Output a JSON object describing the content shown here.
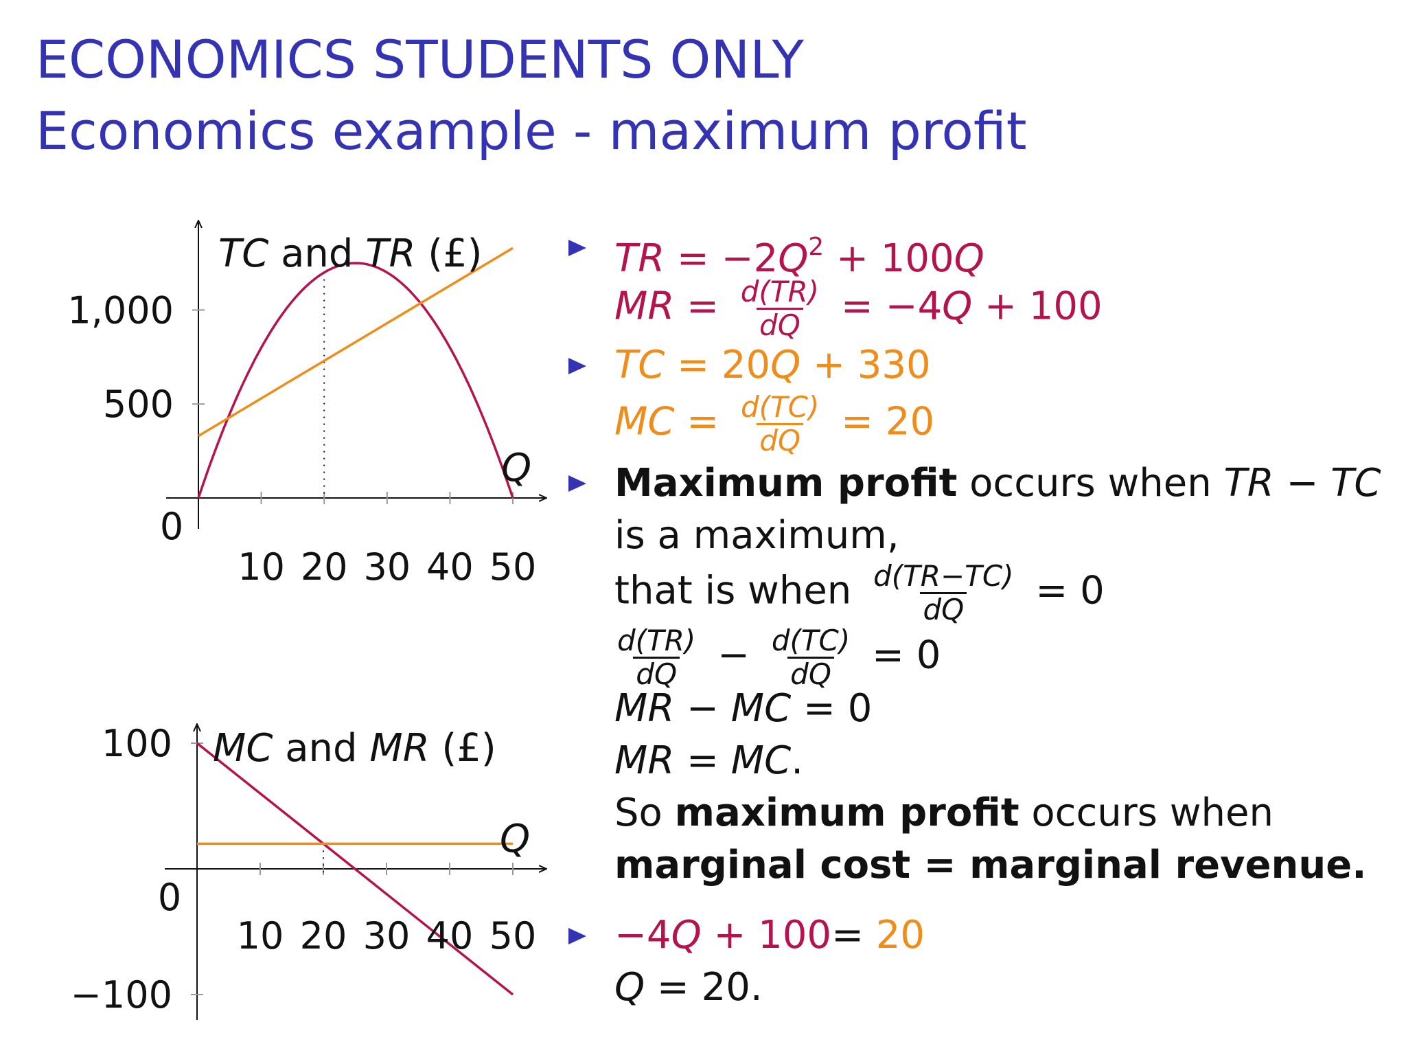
{
  "title": {
    "line1": "ECONOMICS STUDENTS ONLY",
    "line2": "Economics example - maximum profit"
  },
  "colors": {
    "title": "#3333b3",
    "revenue": "#b5134e",
    "cost": "#ef8c1a",
    "text": "#111111"
  },
  "chart_data": [
    {
      "type": "line",
      "title_parts": [
        "TC",
        " and ",
        "TR",
        " (£)"
      ],
      "xlabel": "Q",
      "x_ticks": [
        10,
        20,
        30,
        40,
        50
      ],
      "x_tick_labels": [
        "10",
        "20",
        "30",
        "40",
        "50"
      ],
      "y_ticks": [
        500,
        1000
      ],
      "y_tick_labels": [
        "500",
        "1,000"
      ],
      "origin_label": "0",
      "xlim": [
        0,
        50
      ],
      "ylim": [
        0,
        1300
      ],
      "grid": false,
      "series": [
        {
          "name": "TR",
          "formula": "-2Q^2+100Q",
          "color": "#b5134e",
          "x": [
            0,
            5,
            10,
            15,
            20,
            25,
            30,
            35,
            40,
            45,
            50
          ],
          "y": [
            0,
            450,
            800,
            1050,
            1200,
            1250,
            1200,
            1050,
            800,
            450,
            0
          ]
        },
        {
          "name": "TC",
          "formula": "20Q+330",
          "color": "#ef8c1a",
          "x": [
            0,
            50
          ],
          "y": [
            330,
            1330
          ]
        }
      ],
      "annotations": [
        {
          "type": "vertical-dotted-line",
          "x": 20
        }
      ]
    },
    {
      "type": "line",
      "title_parts": [
        "MC",
        " and ",
        "MR",
        " (£)"
      ],
      "xlabel": "Q",
      "x_ticks": [
        10,
        20,
        30,
        40,
        50
      ],
      "x_tick_labels": [
        "10",
        "20",
        "30",
        "40",
        "50"
      ],
      "y_ticks": [
        100,
        -100
      ],
      "y_tick_labels": [
        "100",
        "−100"
      ],
      "origin_label": "0",
      "xlim": [
        0,
        50
      ],
      "ylim": [
        -100,
        100
      ],
      "grid": false,
      "series": [
        {
          "name": "MR",
          "formula": "-4Q+100",
          "color": "#b5134e",
          "x": [
            0,
            50
          ],
          "y": [
            100,
            -100
          ]
        },
        {
          "name": "MC",
          "formula": "20",
          "color": "#ef8c1a",
          "x": [
            0,
            50
          ],
          "y": [
            20,
            20
          ]
        }
      ],
      "annotations": [
        {
          "type": "vertical-dotted-line",
          "x": 20
        }
      ]
    }
  ],
  "equations": {
    "eq_tr": {
      "lhs": "TR",
      "op1": " = −2",
      "q": "Q",
      "sup": "2",
      "op2": " + 100",
      "q2": "Q"
    },
    "eq_mr": {
      "lhs": "MR",
      "eq": " = ",
      "num": "d(TR)",
      "den": "dQ",
      "rhs1": " = −4",
      "q": "Q",
      "rhs2": " + 100"
    },
    "eq_tc": {
      "lhs": "TC",
      "op1": " = 20",
      "q": "Q",
      "op2": " + 330"
    },
    "eq_mc": {
      "lhs": "MC",
      "eq": " = ",
      "num": "d(TC)",
      "den": "dQ",
      "rhs": " = 20"
    },
    "b3_line1": {
      "bold": "Maximum profit",
      "rest": " occurs when ",
      "a": "TR",
      "minus": " − ",
      "b": "TC"
    },
    "b3_line2": "is a maximum,",
    "b3_line3": {
      "text": "that is when ",
      "num": "d(TR−TC)",
      "den": "dQ",
      "rhs": " = 0"
    },
    "b3_line4": {
      "num1": "d(TR)",
      "den1": "dQ",
      "minus": " − ",
      "num2": "d(TC)",
      "den2": "dQ",
      "rhs": " = 0"
    },
    "b3_line5": {
      "a": "MR",
      "minus": " − ",
      "b": "MC",
      "rhs": " = 0"
    },
    "b3_line6": {
      "a": "MR",
      "eq": " = ",
      "b": "MC",
      "end": "."
    },
    "b3_line7": {
      "pre": "So ",
      "bold": "maximum profit",
      "rest": " occurs when"
    },
    "b3_line8": "marginal cost = marginal revenue.",
    "b4_line1": {
      "red": "−4",
      "q": "Q",
      "red2": " + 100",
      "eq": "= ",
      "org": "20"
    },
    "b4_line2": {
      "q": "Q",
      "rest": " = 20."
    }
  }
}
